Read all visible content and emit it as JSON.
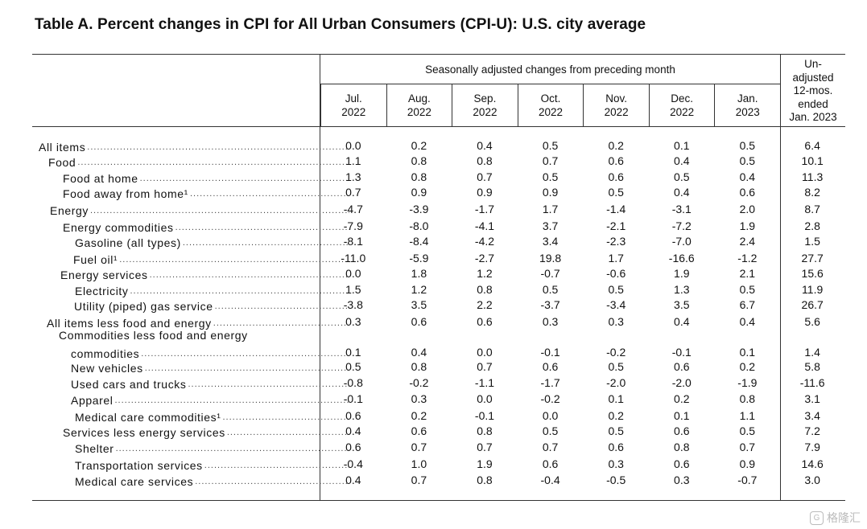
{
  "title": "Table A. Percent changes in CPI for All Urban Consumers (CPI-U): U.S. city average",
  "header": {
    "group": "Seasonally adjusted changes from preceding month",
    "months": [
      {
        "m": "Jul.",
        "y": "2022"
      },
      {
        "m": "Aug.",
        "y": "2022"
      },
      {
        "m": "Sep.",
        "y": "2022"
      },
      {
        "m": "Oct.",
        "y": "2022"
      },
      {
        "m": "Nov.",
        "y": "2022"
      },
      {
        "m": "Dec.",
        "y": "2022"
      },
      {
        "m": "Jan.",
        "y": "2023"
      }
    ],
    "unadj": [
      "Un-",
      "adjusted",
      "12-mos.",
      "ended",
      "Jan. 2023"
    ]
  },
  "rows": [
    {
      "label": "All items",
      "values": [
        "0.0",
        "0.2",
        "0.4",
        "0.5",
        "0.2",
        "0.1",
        "0.5",
        "6.4"
      ]
    },
    {
      "label": "Food",
      "values": [
        "1.1",
        "0.8",
        "0.8",
        "0.7",
        "0.6",
        "0.4",
        "0.5",
        "10.1"
      ]
    },
    {
      "label": "Food at home",
      "values": [
        "1.3",
        "0.8",
        "0.7",
        "0.5",
        "0.6",
        "0.5",
        "0.4",
        "11.3"
      ]
    },
    {
      "label": "Food away from home¹",
      "values": [
        "0.7",
        "0.9",
        "0.9",
        "0.9",
        "0.5",
        "0.4",
        "0.6",
        "8.2"
      ]
    },
    {
      "label": "Energy",
      "values": [
        "-4.7",
        "-3.9",
        "-1.7",
        "1.7",
        "-1.4",
        "-3.1",
        "2.0",
        "8.7"
      ]
    },
    {
      "label": "Energy commodities",
      "values": [
        "-7.9",
        "-8.0",
        "-4.1",
        "3.7",
        "-2.1",
        "-7.2",
        "1.9",
        "2.8"
      ]
    },
    {
      "label": "Gasoline (all types)",
      "values": [
        "-8.1",
        "-8.4",
        "-4.2",
        "3.4",
        "-2.3",
        "-7.0",
        "2.4",
        "1.5"
      ]
    },
    {
      "label": "Fuel oil¹",
      "values": [
        "-11.0",
        "-5.9",
        "-2.7",
        "19.8",
        "1.7",
        "-16.6",
        "-1.2",
        "27.7"
      ]
    },
    {
      "label": "Energy services",
      "values": [
        "0.0",
        "1.8",
        "1.2",
        "-0.7",
        "-0.6",
        "1.9",
        "2.1",
        "15.6"
      ]
    },
    {
      "label": "Electricity",
      "values": [
        "1.5",
        "1.2",
        "0.8",
        "0.5",
        "0.5",
        "1.3",
        "0.5",
        "11.9"
      ]
    },
    {
      "label": "Utility (piped) gas service",
      "values": [
        "-3.8",
        "3.5",
        "2.2",
        "-3.7",
        "-3.4",
        "3.5",
        "6.7",
        "26.7"
      ]
    },
    {
      "label": "All items less food and energy",
      "values": [
        "0.3",
        "0.6",
        "0.6",
        "0.3",
        "0.3",
        "0.4",
        "0.4",
        "5.6"
      ]
    },
    {
      "label": "Commodities less food and energy",
      "label2": "commodities",
      "values": [
        "0.1",
        "0.4",
        "0.0",
        "-0.1",
        "-0.2",
        "-0.1",
        "0.1",
        "1.4"
      ]
    },
    {
      "label": "New vehicles",
      "values": [
        "0.5",
        "0.8",
        "0.7",
        "0.6",
        "0.5",
        "0.6",
        "0.2",
        "5.8"
      ]
    },
    {
      "label": "Used cars and trucks",
      "values": [
        "-0.8",
        "-0.2",
        "-1.1",
        "-1.7",
        "-2.0",
        "-2.0",
        "-1.9",
        "-11.6"
      ]
    },
    {
      "label": "Apparel",
      "values": [
        "-0.1",
        "0.3",
        "0.0",
        "-0.2",
        "0.1",
        "0.2",
        "0.8",
        "3.1"
      ]
    },
    {
      "label": "Medical care commodities¹",
      "values": [
        "0.6",
        "0.2",
        "-0.1",
        "0.0",
        "0.2",
        "0.1",
        "1.1",
        "3.4"
      ]
    },
    {
      "label": "Services less energy services",
      "values": [
        "0.4",
        "0.6",
        "0.8",
        "0.5",
        "0.5",
        "0.6",
        "0.5",
        "7.2"
      ]
    },
    {
      "label": "Shelter",
      "values": [
        "0.6",
        "0.7",
        "0.7",
        "0.7",
        "0.6",
        "0.8",
        "0.7",
        "7.9"
      ]
    },
    {
      "label": "Transportation services",
      "values": [
        "-0.4",
        "1.0",
        "1.9",
        "0.6",
        "0.3",
        "0.6",
        "0.9",
        "14.6"
      ]
    },
    {
      "label": "Medical care services",
      "values": [
        "0.4",
        "0.7",
        "0.8",
        "-0.4",
        "-0.5",
        "0.3",
        "-0.7",
        "3.0"
      ]
    }
  ],
  "watermark": "格隆汇",
  "watermark_icon": "g-logo-icon"
}
